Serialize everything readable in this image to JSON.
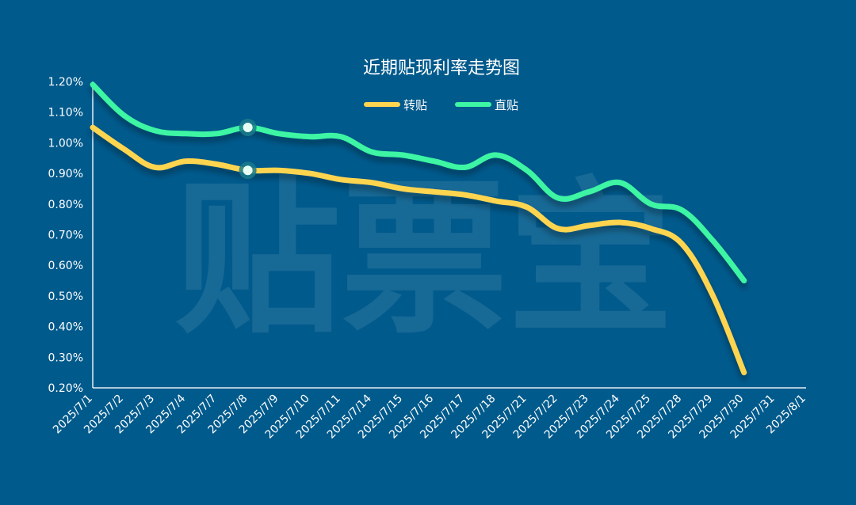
{
  "watermark": "贴票宝",
  "chart_data": {
    "type": "line",
    "title": "近期贴现利率走势图",
    "xlabel": "",
    "ylabel": "",
    "ylim": [
      0.2,
      1.2
    ],
    "yticks": [
      "0.20%",
      "0.30%",
      "0.40%",
      "0.50%",
      "0.60%",
      "0.70%",
      "0.80%",
      "0.90%",
      "1.00%",
      "1.10%",
      "1.20%"
    ],
    "categories": [
      "2025/7/1",
      "2025/7/2",
      "2025/7/3",
      "2025/7/4",
      "2025/7/7",
      "2025/7/8",
      "2025/7/9",
      "2025/7/10",
      "2025/7/11",
      "2025/7/14",
      "2025/7/15",
      "2025/7/16",
      "2025/7/17",
      "2025/7/18",
      "2025/7/21",
      "2025/7/22",
      "2025/7/23",
      "2025/7/24",
      "2025/7/25",
      "2025/7/28",
      "2025/7/29",
      "2025/7/30",
      "2025/7/31",
      "2025/8/1"
    ],
    "legend_position": "top-center",
    "grid": false,
    "series": [
      {
        "name": "转贴",
        "color": "#ffd54f",
        "values": [
          1.05,
          0.98,
          0.92,
          0.94,
          0.93,
          0.91,
          0.91,
          0.9,
          0.88,
          0.87,
          0.85,
          0.84,
          0.83,
          0.81,
          0.79,
          0.72,
          0.73,
          0.74,
          0.72,
          0.67,
          0.5,
          0.25,
          null,
          null
        ]
      },
      {
        "name": "直贴",
        "color": "#3df5a3",
        "values": [
          1.19,
          1.09,
          1.04,
          1.03,
          1.03,
          1.05,
          1.03,
          1.02,
          1.02,
          0.97,
          0.96,
          0.94,
          0.92,
          0.96,
          0.91,
          0.82,
          0.84,
          0.87,
          0.8,
          0.78,
          0.68,
          0.55,
          null,
          null
        ]
      }
    ],
    "highlighted_category": "2025/7/8"
  }
}
